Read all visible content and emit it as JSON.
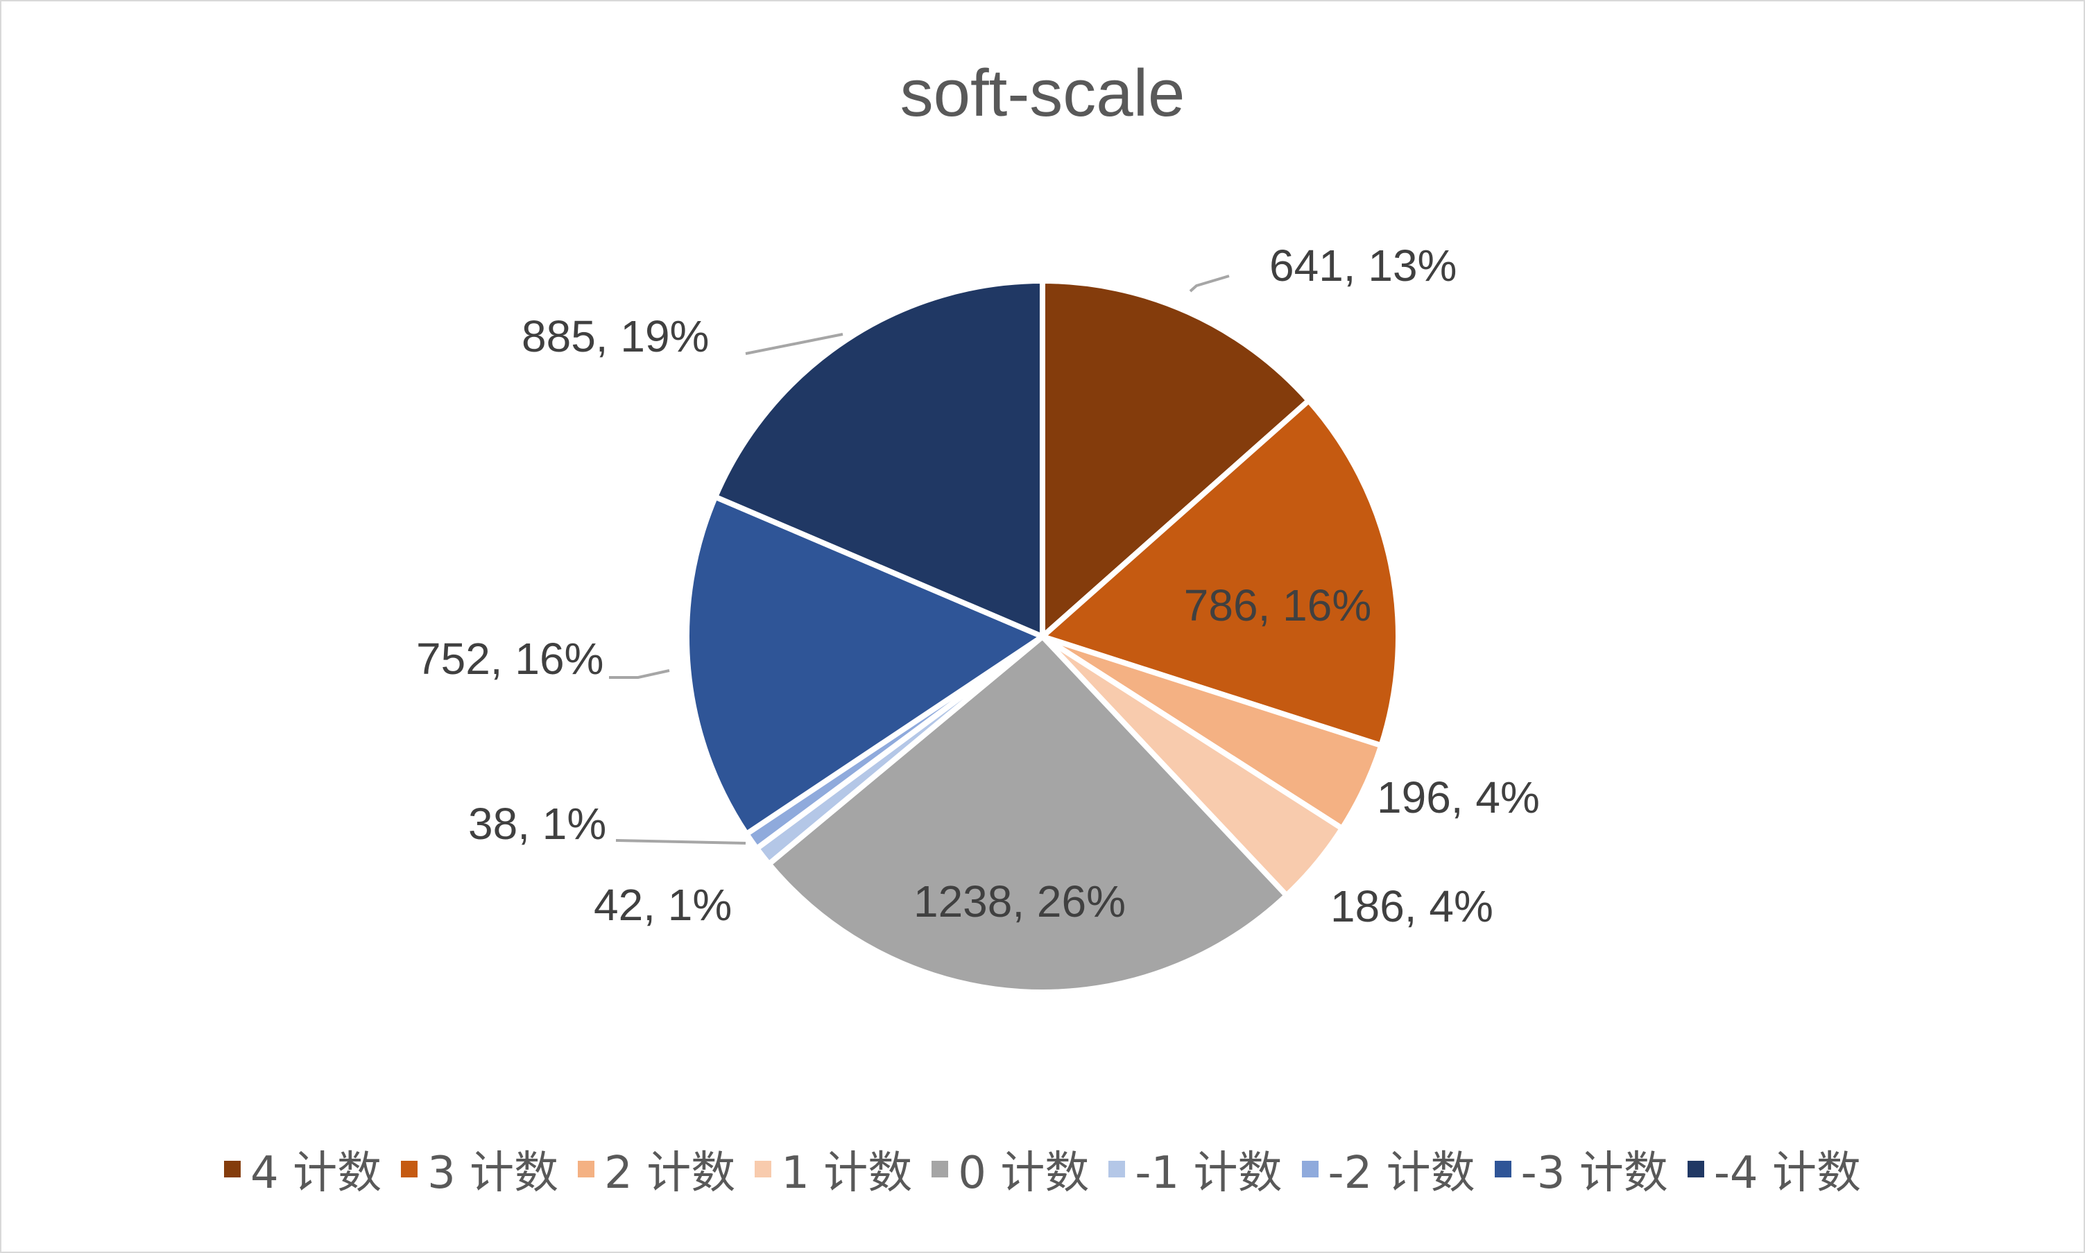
{
  "chart_data": {
    "type": "pie",
    "title": "soft-scale",
    "legend_position": "bottom",
    "slices": [
      {
        "name": "4 计数",
        "value": 641,
        "percent": "13%",
        "label": "641, 13%",
        "color": "#843c0c"
      },
      {
        "name": "3 计数",
        "value": 786,
        "percent": "16%",
        "label": "786, 16%",
        "color": "#c55a11"
      },
      {
        "name": "2 计数",
        "value": 196,
        "percent": "4%",
        "label": "196, 4%",
        "color": "#f4b183"
      },
      {
        "name": "1 计数",
        "value": 186,
        "percent": "4%",
        "label": "186, 4%",
        "color": "#f8cbad"
      },
      {
        "name": "0 计数",
        "value": 1238,
        "percent": "26%",
        "label": "1238, 26%",
        "color": "#a5a5a5"
      },
      {
        "name": "-1 计数",
        "value": 42,
        "percent": "1%",
        "label": "42, 1%",
        "color": "#b4c7e7"
      },
      {
        "name": "-2 计数",
        "value": 38,
        "percent": "1%",
        "label": "38, 1%",
        "color": "#8faadc"
      },
      {
        "name": "-3 计数",
        "value": 752,
        "percent": "16%",
        "label": "752, 16%",
        "color": "#2f5597"
      },
      {
        "name": "-4 计数",
        "value": 885,
        "percent": "19%",
        "label": "885, 19%",
        "color": "#203864"
      }
    ]
  }
}
